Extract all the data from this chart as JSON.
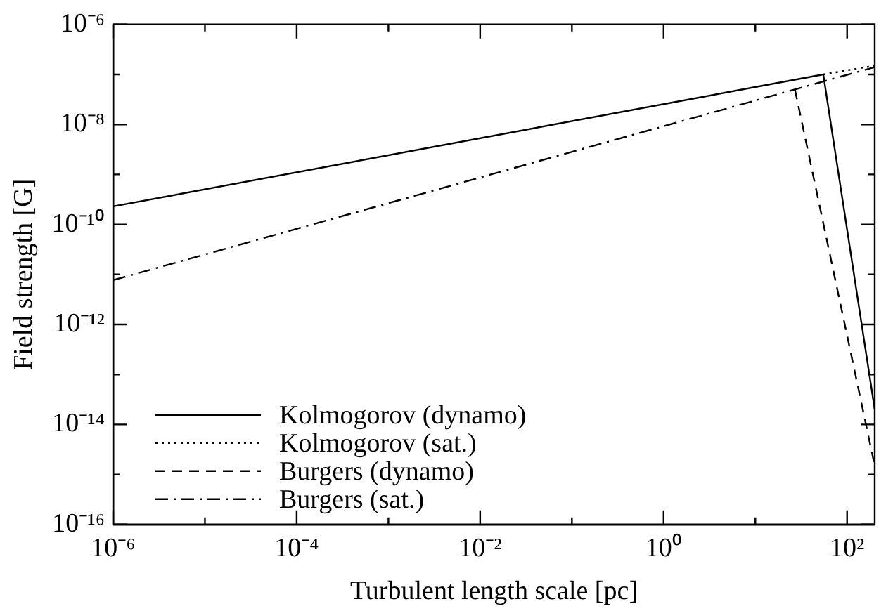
{
  "chart_data": {
    "type": "line",
    "xlabel": "Turbulent length scale [pc]",
    "ylabel": "Field strength [G]",
    "log": "xy",
    "xlim": [
      1e-06,
      200
    ],
    "ylim": [
      1e-16,
      1e-06
    ],
    "xticks": [
      {
        "value": 1e-06,
        "label": "10⁻⁶"
      },
      {
        "value": 1e-05,
        "label": null
      },
      {
        "value": 0.0001,
        "label": "10⁻⁴"
      },
      {
        "value": 0.001,
        "label": null
      },
      {
        "value": 0.01,
        "label": "10⁻²"
      },
      {
        "value": 0.1,
        "label": null
      },
      {
        "value": 1,
        "label": "10⁰"
      },
      {
        "value": 10,
        "label": null
      },
      {
        "value": 100,
        "label": "10²"
      }
    ],
    "yticks": [
      {
        "value": 1e-16,
        "label": "10⁻¹⁶"
      },
      {
        "value": 1e-15,
        "label": null
      },
      {
        "value": 1e-14,
        "label": "10⁻¹⁴"
      },
      {
        "value": 1e-13,
        "label": null
      },
      {
        "value": 1e-12,
        "label": "10⁻¹²"
      },
      {
        "value": 1e-11,
        "label": null
      },
      {
        "value": 1e-10,
        "label": "10⁻¹⁰"
      },
      {
        "value": 1e-09,
        "label": null
      },
      {
        "value": 1e-08,
        "label": "10⁻⁸"
      },
      {
        "value": 1e-07,
        "label": null
      },
      {
        "value": 1e-06,
        "label": "10⁻⁶"
      }
    ],
    "grid": false,
    "legend": "bottom left",
    "marker": "none",
    "series": [
      {
        "name": "Kolmogorov (dynamo)",
        "color": "#000000",
        "line_style": "solid",
        "x": [
          1e-06,
          55,
          200
        ],
        "values": [
          2.3e-10,
          1e-07,
          2e-14
        ]
      },
      {
        "name": "Kolmogorov (sat.)",
        "color": "#000000",
        "line_style": "dotted",
        "x": [
          55,
          200
        ],
        "values": [
          1e-07,
          1.5e-07
        ]
      },
      {
        "name": "Burgers (dynamo)",
        "color": "#000000",
        "line_style": "dashed",
        "x": [
          27,
          200
        ],
        "values": [
          5e-08,
          1.5e-15
        ]
      },
      {
        "name": "Burgers (sat.)",
        "color": "#000000",
        "line_style": "dashdot",
        "x": [
          1e-06,
          200
        ],
        "values": [
          7.7e-12,
          1.4e-07
        ]
      }
    ]
  }
}
